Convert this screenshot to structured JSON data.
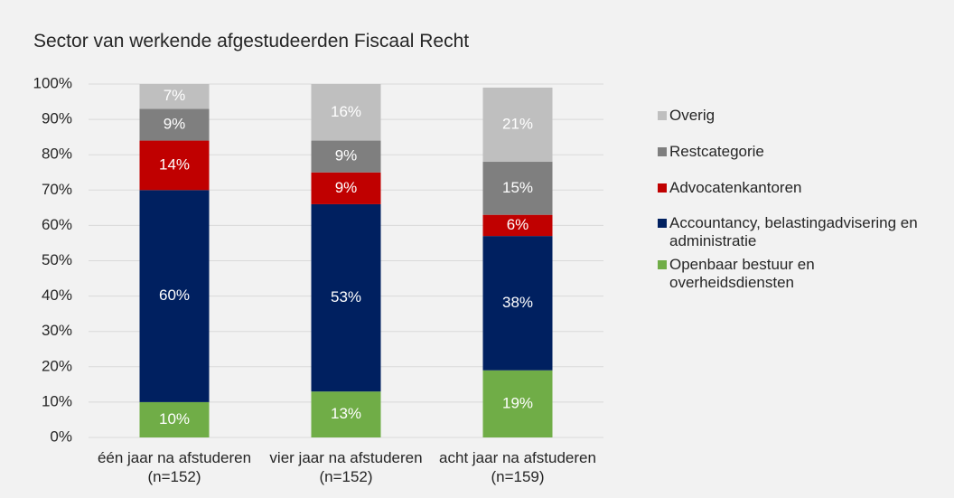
{
  "chart_data": {
    "type": "stacked_bar",
    "title": "Sector van werkende afgestudeerden Fiscaal Recht",
    "categories": [
      "één jaar na afstuderen (n=152)",
      "vier jaar na afstuderen (n=152)",
      "acht jaar na afstuderen (n=159)"
    ],
    "series": [
      {
        "name": "Openbaar bestuur en overheidsdiensten",
        "color": "#70ad47",
        "values": [
          10,
          13,
          19
        ],
        "value_labels": [
          "10%",
          "13%",
          "19%"
        ]
      },
      {
        "name": "Accountancy, belastingadvisering en administratie",
        "color": "#002060",
        "values": [
          60,
          53,
          38
        ],
        "value_labels": [
          "60%",
          "53%",
          "38%"
        ]
      },
      {
        "name": "Advocatenkantoren",
        "color": "#c00000",
        "values": [
          14,
          9,
          6
        ],
        "value_labels": [
          "14%",
          "9%",
          "6%"
        ]
      },
      {
        "name": "Restcategorie",
        "color": "#7f7f7f",
        "values": [
          9,
          9,
          15
        ],
        "value_labels": [
          "9%",
          "9%",
          "15%"
        ]
      },
      {
        "name": "Overig",
        "color": "#bfbfbf",
        "values": [
          7,
          16,
          21
        ],
        "value_labels": [
          "7%",
          "16%",
          "21%"
        ]
      }
    ],
    "ylim": [
      0,
      100
    ],
    "yticks": [
      {
        "value": 0,
        "label": "0%"
      },
      {
        "value": 10,
        "label": "10%"
      },
      {
        "value": 20,
        "label": "20%"
      },
      {
        "value": 30,
        "label": "30%"
      },
      {
        "value": 40,
        "label": "40%"
      },
      {
        "value": 50,
        "label": "50%"
      },
      {
        "value": 60,
        "label": "60%"
      },
      {
        "value": 70,
        "label": "70%"
      },
      {
        "value": 80,
        "label": "80%"
      },
      {
        "value": 90,
        "label": "90%"
      },
      {
        "value": 100,
        "label": "100%"
      }
    ],
    "grid": true,
    "legend": "right"
  }
}
